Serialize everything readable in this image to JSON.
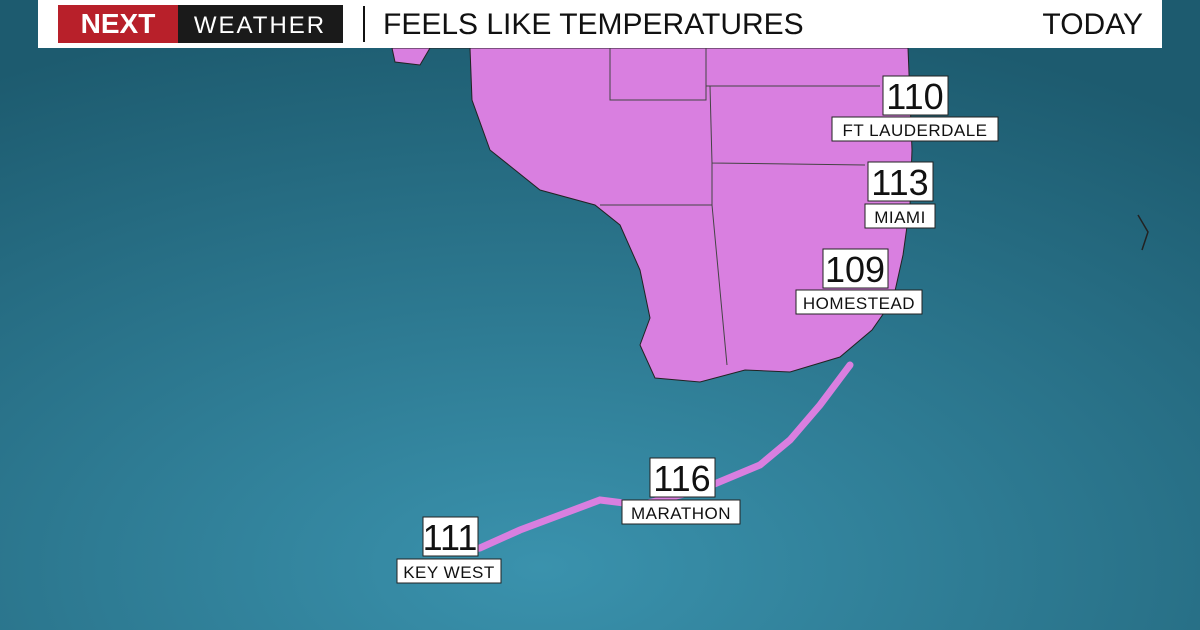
{
  "header": {
    "brand": "NEXT",
    "brand_suffix": "WEATHER",
    "title": "FEELS LIKE TEMPERATURES",
    "period": "TODAY"
  },
  "cities": [
    {
      "name": "FT LAUDERDALE",
      "temperature": 110
    },
    {
      "name": "MIAMI",
      "temperature": 113
    },
    {
      "name": "HOMESTEAD",
      "temperature": 109
    },
    {
      "name": "MARATHON",
      "temperature": 116
    },
    {
      "name": "KEY WEST",
      "temperature": 111
    }
  ]
}
